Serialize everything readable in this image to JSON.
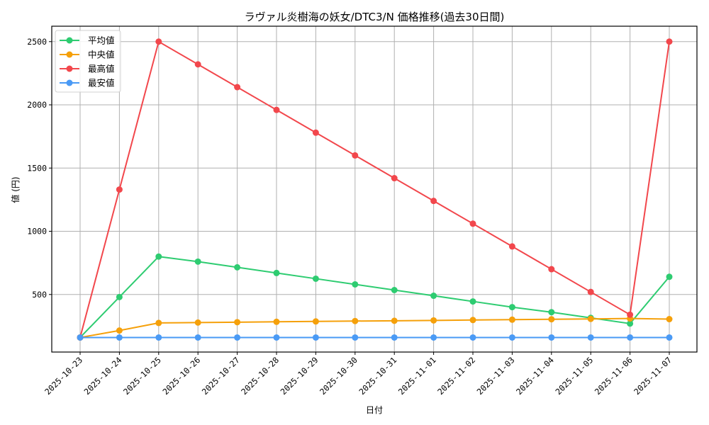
{
  "chart_data": {
    "type": "line",
    "title": "ラヴァル炎樹海の妖女/DTC3/N 価格推移(過去30日間)",
    "xlabel": "日付",
    "ylabel": "値 (円)",
    "ylim": [
      125,
      2620
    ],
    "yticks": [
      500,
      1000,
      1500,
      2000,
      2500
    ],
    "grid": true,
    "legend_position": "upper left",
    "categories": [
      "2025-10-23",
      "2025-10-24",
      "2025-10-25",
      "2025-10-26",
      "2025-10-27",
      "2025-10-28",
      "2025-10-29",
      "2025-10-30",
      "2025-10-31",
      "2025-11-01",
      "2025-11-02",
      "2025-11-03",
      "2025-11-04",
      "2025-11-05",
      "2025-11-06",
      "2025-11-07"
    ],
    "series": [
      {
        "name": "平均値",
        "color": "#2ecc71",
        "values": [
          160,
          480,
          800,
          760,
          715,
          670,
          625,
          580,
          535,
          490,
          445,
          400,
          360,
          315,
          270,
          640
        ]
      },
      {
        "name": "中央値",
        "color": "#f5a00a",
        "values": [
          160,
          215,
          275,
          278,
          281,
          284,
          287,
          290,
          292,
          295,
          298,
          301,
          304,
          307,
          310,
          305
        ]
      },
      {
        "name": "最高値",
        "color": "#f2474c",
        "values": [
          160,
          1330,
          2500,
          2320,
          2140,
          1960,
          1780,
          1600,
          1420,
          1240,
          1060,
          880,
          700,
          520,
          340,
          2500
        ]
      },
      {
        "name": "最安値",
        "color": "#4a9af5",
        "values": [
          160,
          160,
          160,
          160,
          160,
          160,
          160,
          160,
          160,
          160,
          160,
          160,
          160,
          160,
          160,
          160
        ]
      }
    ]
  }
}
